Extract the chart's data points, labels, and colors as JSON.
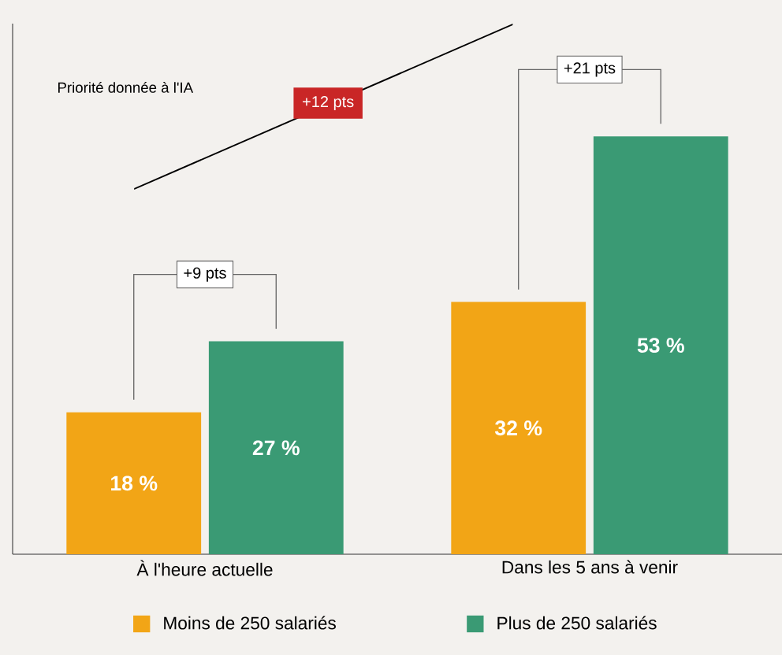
{
  "chart_data": {
    "type": "bar",
    "ylabel": "Priorité donnée à l'IA",
    "categories": [
      "À l'heure actuelle",
      "Dans les 5 ans à venir"
    ],
    "series": [
      {
        "name": "Moins de 250 salariés",
        "color": "#f2a516",
        "values": [
          18,
          32
        ],
        "value_labels": [
          "18 %",
          "32 %"
        ]
      },
      {
        "name": "Plus de 250 salariés",
        "color": "#3a9a74",
        "values": [
          27,
          53
        ],
        "value_labels": [
          "27 %",
          "53 %"
        ]
      }
    ],
    "annotations": [
      "+9 pts",
      "+21 pts",
      "+12 pts"
    ],
    "legend": "bottom"
  }
}
